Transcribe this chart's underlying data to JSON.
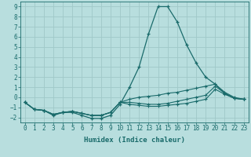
{
  "xlabel": "Humidex (Indice chaleur)",
  "xlim": [
    -0.5,
    23.5
  ],
  "ylim": [
    -2.5,
    9.5
  ],
  "xticks": [
    0,
    1,
    2,
    3,
    4,
    5,
    6,
    7,
    8,
    9,
    10,
    11,
    12,
    13,
    14,
    15,
    16,
    17,
    18,
    19,
    20,
    21,
    22,
    23
  ],
  "yticks": [
    -2,
    -1,
    0,
    1,
    2,
    3,
    4,
    5,
    6,
    7,
    8,
    9
  ],
  "background_color": "#b8dede",
  "grid_color": "#a0c8c8",
  "line_color": "#1a6b6b",
  "lines": [
    {
      "x": [
        0,
        1,
        2,
        3,
        4,
        5,
        6,
        7,
        8,
        9,
        10,
        11,
        12,
        13,
        14,
        15,
        16,
        17,
        18,
        19,
        20,
        21,
        22,
        23
      ],
      "y": [
        -0.5,
        -1.2,
        -1.3,
        -1.8,
        -1.5,
        -1.5,
        -1.8,
        -2.1,
        -2.1,
        -1.8,
        -0.7,
        1.0,
        3.0,
        6.3,
        9.0,
        9.0,
        7.5,
        5.2,
        3.4,
        2.0,
        1.3,
        0.4,
        -0.1,
        -0.2
      ]
    },
    {
      "x": [
        0,
        1,
        2,
        3,
        4,
        5,
        6,
        7,
        8,
        9,
        10,
        11,
        12,
        13,
        14,
        15,
        16,
        17,
        18,
        19,
        20,
        21,
        22,
        23
      ],
      "y": [
        -0.5,
        -1.2,
        -1.3,
        -1.7,
        -1.5,
        -1.4,
        -1.6,
        -1.8,
        -1.8,
        -1.5,
        -0.5,
        -0.2,
        0.0,
        0.1,
        0.2,
        0.4,
        0.5,
        0.7,
        0.9,
        1.1,
        1.3,
        0.5,
        0.0,
        -0.2
      ]
    },
    {
      "x": [
        0,
        1,
        2,
        3,
        4,
        5,
        6,
        7,
        8,
        9,
        10,
        11,
        12,
        13,
        14,
        15,
        16,
        17,
        18,
        19,
        20,
        21,
        22,
        23
      ],
      "y": [
        -0.5,
        -1.2,
        -1.3,
        -1.7,
        -1.5,
        -1.4,
        -1.6,
        -1.8,
        -1.8,
        -1.5,
        -0.5,
        -0.5,
        -0.6,
        -0.7,
        -0.7,
        -0.6,
        -0.4,
        -0.2,
        0.0,
        0.2,
        1.1,
        0.4,
        -0.1,
        -0.2
      ]
    },
    {
      "x": [
        0,
        1,
        2,
        3,
        4,
        5,
        6,
        7,
        8,
        9,
        10,
        11,
        12,
        13,
        14,
        15,
        16,
        17,
        18,
        19,
        20,
        21,
        22,
        23
      ],
      "y": [
        -0.5,
        -1.2,
        -1.3,
        -1.7,
        -1.5,
        -1.4,
        -1.6,
        -1.8,
        -1.8,
        -1.5,
        -0.5,
        -0.7,
        -0.8,
        -0.9,
        -0.9,
        -0.8,
        -0.7,
        -0.6,
        -0.4,
        -0.2,
        0.8,
        0.3,
        -0.1,
        -0.2
      ]
    }
  ],
  "figsize": [
    3.2,
    2.0
  ],
  "dpi": 100,
  "font_size_xlabel": 6.5,
  "font_size_ticks": 5.5
}
